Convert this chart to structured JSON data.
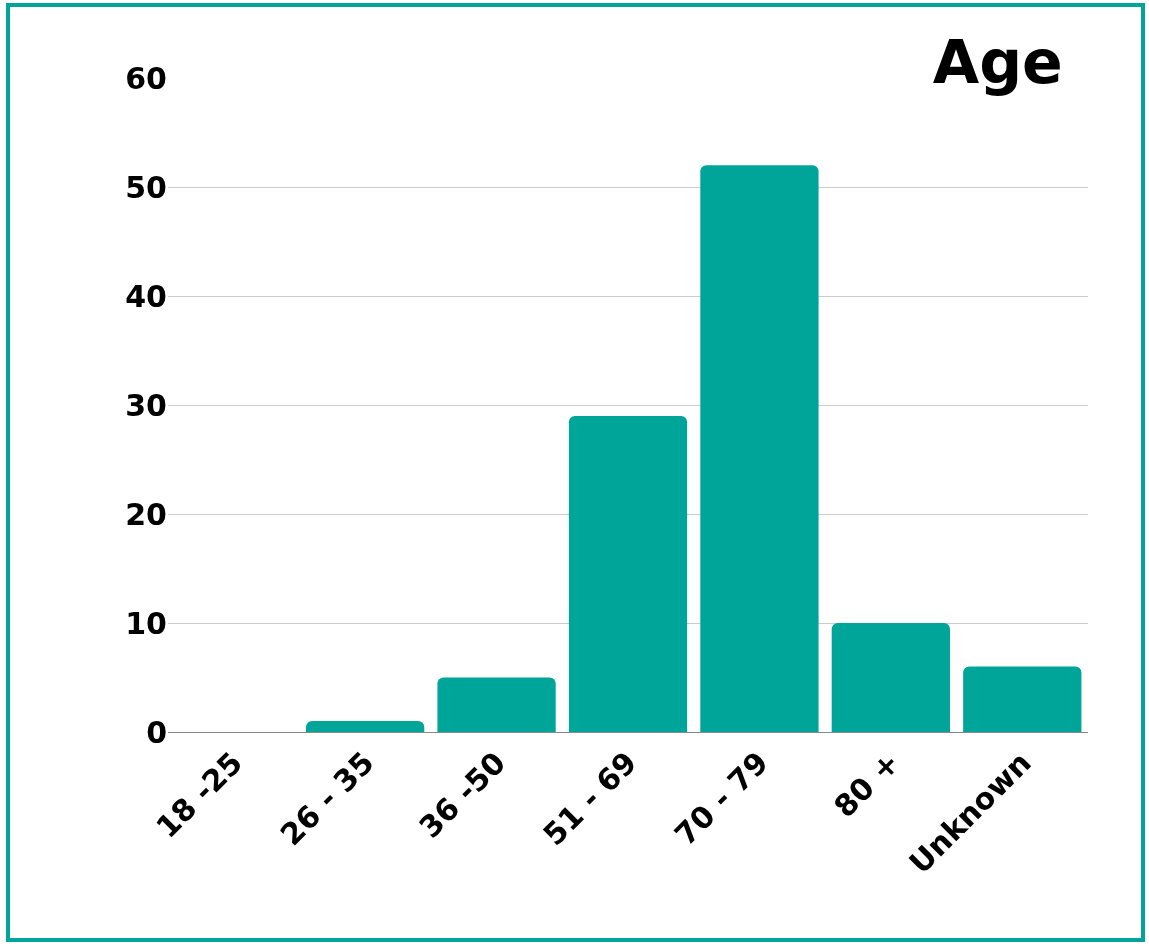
{
  "chart_data": {
    "type": "bar",
    "title": "Age",
    "categories": [
      "18 -25",
      "26 - 35",
      "36 -50",
      "51 - 69",
      "70 - 79",
      "80 +",
      "Unknown"
    ],
    "values": [
      0,
      1,
      5,
      29,
      52,
      10,
      6
    ],
    "color": "#00a59a",
    "ylim": [
      0,
      60
    ],
    "yticks": [
      0,
      10,
      20,
      30,
      40,
      50,
      60
    ],
    "grid": "y",
    "legend": false
  }
}
